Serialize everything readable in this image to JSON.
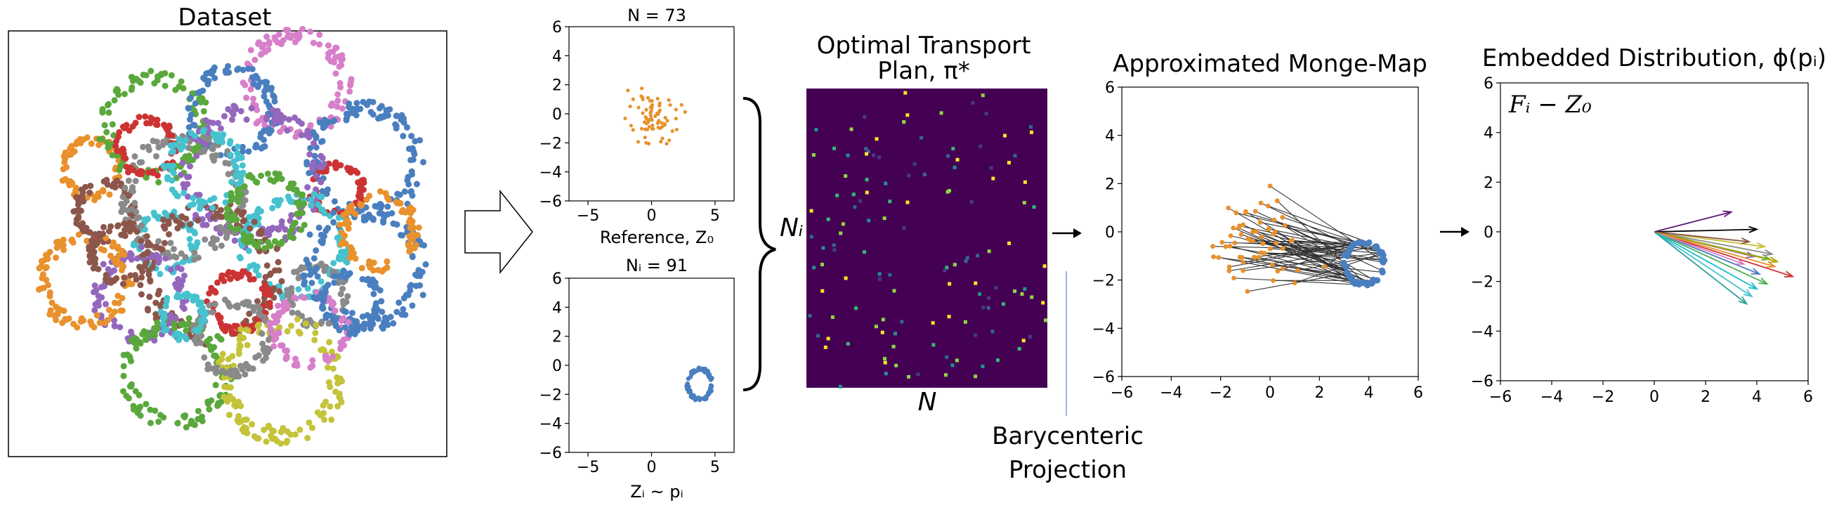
{
  "dataset": {
    "title": "Dataset"
  },
  "reference_plot": {
    "title": "N = 73",
    "xlabel": "Reference, Z₀",
    "xticks": [
      "−5",
      "0",
      "5"
    ],
    "yticks": [
      "6",
      "4",
      "2",
      "0",
      "−2",
      "−4",
      "−6"
    ],
    "color": "#e8912d"
  },
  "sample_plot": {
    "title": "Nᵢ = 91",
    "xlabel": "Zᵢ ~ pᵢ",
    "xticks": [
      "−5",
      "0",
      "5"
    ],
    "yticks": [
      "6",
      "4",
      "2",
      "0",
      "−2",
      "−4",
      "−6"
    ],
    "color": "#4a7fbf"
  },
  "brace_label": "Nᵢ",
  "transport_plan": {
    "title_line1": "Optimal Transport",
    "title_line2": "Plan, π*",
    "xlabel": "N",
    "background": "#440154"
  },
  "projection_label": {
    "line1": "Barycenteric",
    "line2": "Projection"
  },
  "monge_plot": {
    "title": "Approximated Monge-Map",
    "xticks": [
      "−6",
      "−4",
      "−2",
      "0",
      "2",
      "4",
      "6"
    ],
    "yticks": [
      "6",
      "4",
      "2",
      "0",
      "−2",
      "−4",
      "−6"
    ]
  },
  "embedded_plot": {
    "title": "Embedded Distribution, ϕ(pᵢ)",
    "annotation": "Fᵢ − Z₀",
    "xticks": [
      "−6",
      "−4",
      "−2",
      "0",
      "2",
      "4",
      "6"
    ],
    "yticks": [
      "6",
      "4",
      "2",
      "0",
      "−2",
      "−4",
      "−6"
    ]
  },
  "colors": {
    "blue": "#4a7fbf",
    "orange": "#e8912d",
    "green": "#5aa83c",
    "red": "#cc3333",
    "purple": "#9467bd",
    "brown": "#8c564b",
    "pink": "#d77fc9",
    "gray": "#8a8a8a",
    "olive": "#c4c33a",
    "cyan": "#46c2cf"
  }
}
